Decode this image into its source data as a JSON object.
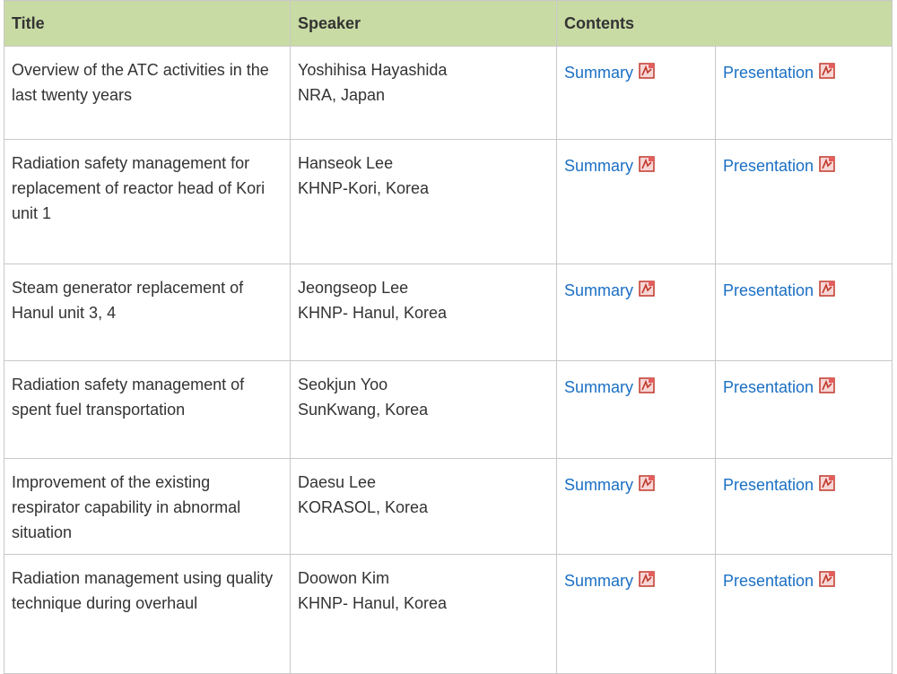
{
  "table": {
    "header": [
      "Title",
      "Speaker",
      "Contents"
    ],
    "rows": [
      {
        "title": "Overview of the ATC activities in the last twenty years",
        "speaker": [
          "Yoshihisa Hayashida",
          "NRA, Japan"
        ],
        "summary": "Summary",
        "presentation": "Presentation"
      },
      {
        "title": "Radiation safety management for replacement of reactor head of Kori unit 1",
        "speaker": [
          "Hanseok Lee",
          "KHNP-Kori, Korea"
        ],
        "summary": "Summary",
        "presentation": "Presentation"
      },
      {
        "title": "Steam generator replacement of Hanul unit 3, 4",
        "speaker": [
          "Jeongseop Lee",
          "KHNP- Hanul, Korea"
        ],
        "summary": "Summary",
        "presentation": "Presentation"
      },
      {
        "title": "Radiation safety management of spent fuel transportation",
        "speaker": [
          "Seokjun Yoo",
          "SunKwang, Korea"
        ],
        "summary": "Summary",
        "presentation": "Presentation"
      },
      {
        "title": "Improvement of the existing respirator capability in abnormal situation",
        "speaker": [
          "Daesu Lee",
          "KORASOL, Korea"
        ],
        "summary": "Summary",
        "presentation": "Presentation"
      },
      {
        "title": "Radiation management using quality technique during overhaul",
        "speaker": [
          "Doowon Kim",
          "KHNP- Hanul, Korea"
        ],
        "summary": "Summary",
        "presentation": "Presentation"
      }
    ]
  }
}
